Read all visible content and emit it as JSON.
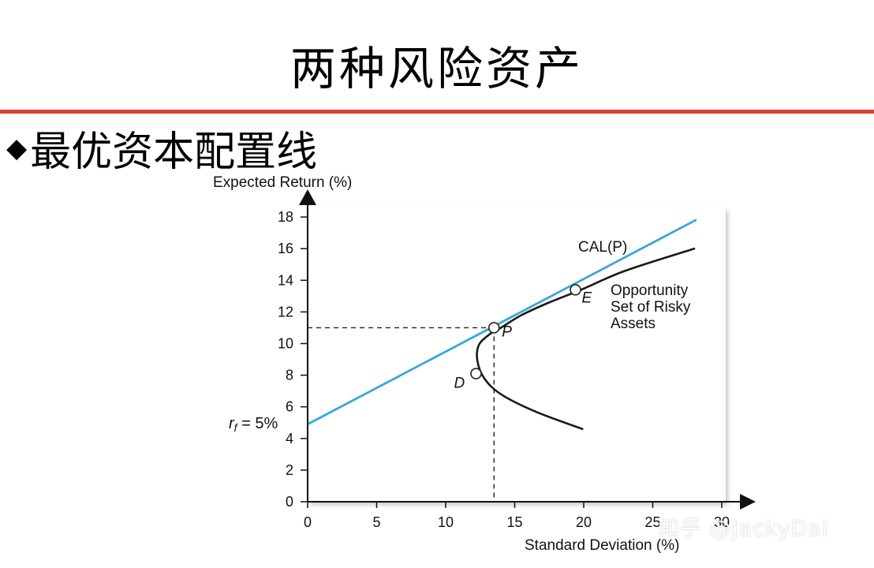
{
  "slide": {
    "title": "两种风险资产",
    "bullet_symbol": "◆",
    "bullet_text": "最优资本配置线"
  },
  "watermark": "知乎 @JackyDai",
  "chart_data": {
    "type": "line",
    "title": "",
    "xlabel": "Standard Deviation (%)",
    "ylabel": "Expected Return (%)",
    "xlim": [
      0,
      30
    ],
    "ylim": [
      0,
      18
    ],
    "x_ticks": [
      0,
      5,
      10,
      15,
      20,
      25,
      30
    ],
    "y_ticks": [
      0,
      2,
      4,
      6,
      8,
      10,
      12,
      14,
      16,
      18
    ],
    "grid": false,
    "series": [
      {
        "name": "CAL(P)",
        "style": "line",
        "color": "#3aa6dc",
        "x": [
          0,
          28.1
        ],
        "y": [
          4.9,
          17.8
        ]
      },
      {
        "name": "Opportunity Set of Risky Assets",
        "style": "curve",
        "color": "#1a1a1a",
        "x": [
          19.9,
          16.5,
          14.0,
          12.8,
          12.3,
          12.4,
          13.2,
          14.0,
          15.5,
          17.5,
          19.8,
          23.0,
          28.0
        ],
        "y": [
          4.6,
          5.7,
          6.8,
          7.8,
          8.9,
          9.9,
          10.6,
          11.0,
          11.8,
          12.6,
          13.4,
          14.6,
          16.0
        ]
      }
    ],
    "points": [
      {
        "label": "P",
        "x": 13.5,
        "y": 11.0
      },
      {
        "label": "D",
        "x": 12.2,
        "y": 8.1
      },
      {
        "label": "E",
        "x": 19.4,
        "y": 13.4
      }
    ],
    "guides": {
      "x": 13.5,
      "y": 11.0
    },
    "annotations": {
      "cal_label": "CAL(P)",
      "opportunity_label": [
        "Opportunity",
        "Set of Risky",
        "Assets"
      ],
      "rf_label_main": "r",
      "rf_label_sub": "f",
      "rf_label_rest": " = 5%"
    },
    "colors": {
      "cal": "#3aa6dc",
      "frontier": "#1a1a1a",
      "plot_bg": "#ffffff",
      "frame_shadow": "#b5b5b5",
      "title_rule": "#d9402f"
    }
  }
}
